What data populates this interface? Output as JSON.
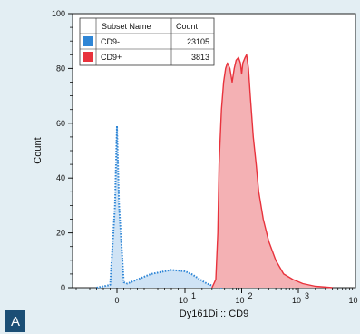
{
  "panel_label": "A",
  "chart_data": {
    "type": "area",
    "title": "",
    "xlabel": "Dy161Di :: CD9",
    "ylabel": "Count",
    "x_scale": "biexponential",
    "ylim": [
      0,
      100
    ],
    "y_ticks": [
      0,
      20,
      40,
      60,
      80,
      100
    ],
    "x_ticks": [
      {
        "value": 0,
        "label": "0"
      },
      {
        "value": 10,
        "base": "10",
        "exp": "1"
      },
      {
        "value": 100,
        "base": "10",
        "exp": "2"
      },
      {
        "value": 1000,
        "base": "10",
        "exp": "3"
      },
      {
        "value": 10000,
        "base": "10",
        "exp": "4"
      }
    ],
    "grid": false,
    "legend_position": "top-left",
    "legend": {
      "headers": [
        "Subset Name",
        "Count"
      ],
      "rows": [
        {
          "name": "CD9-",
          "count": "23105",
          "color": "#2f86d6"
        },
        {
          "name": "CD9+",
          "count": "3813",
          "color": "#e8323c"
        }
      ]
    },
    "series": [
      {
        "name": "CD9-",
        "color": "#2f86d6",
        "fill": "#cfe3f5",
        "style": "dotted",
        "points": [
          [
            -3,
            0
          ],
          [
            -1,
            1
          ],
          [
            -0.3,
            30
          ],
          [
            0,
            59
          ],
          [
            0.3,
            30
          ],
          [
            1,
            2
          ],
          [
            1.5,
            1.5
          ],
          [
            2,
            2
          ],
          [
            3,
            3
          ],
          [
            4,
            4
          ],
          [
            5,
            5
          ],
          [
            6,
            5.5
          ],
          [
            8,
            6.5
          ],
          [
            10,
            6
          ],
          [
            13,
            5
          ],
          [
            17,
            3.5
          ],
          [
            22,
            2
          ],
          [
            28,
            1
          ],
          [
            35,
            0.5
          ],
          [
            45,
            0
          ]
        ]
      },
      {
        "name": "CD9+",
        "color": "#e8323c",
        "fill": "#f4b1b4",
        "style": "solid",
        "points": [
          [
            30,
            0
          ],
          [
            35,
            3
          ],
          [
            38,
            20
          ],
          [
            40,
            45
          ],
          [
            44,
            65
          ],
          [
            48,
            75
          ],
          [
            52,
            80
          ],
          [
            56,
            82
          ],
          [
            62,
            80
          ],
          [
            68,
            75
          ],
          [
            74,
            80
          ],
          [
            80,
            83
          ],
          [
            88,
            84
          ],
          [
            95,
            82
          ],
          [
            100,
            78
          ],
          [
            105,
            82
          ],
          [
            115,
            84
          ],
          [
            122,
            85
          ],
          [
            132,
            80
          ],
          [
            142,
            70
          ],
          [
            160,
            55
          ],
          [
            180,
            45
          ],
          [
            200,
            35
          ],
          [
            240,
            25
          ],
          [
            300,
            17
          ],
          [
            400,
            10
          ],
          [
            550,
            5
          ],
          [
            800,
            3
          ],
          [
            1200,
            1.5
          ],
          [
            2000,
            0.5
          ],
          [
            4000,
            0
          ]
        ]
      }
    ]
  }
}
